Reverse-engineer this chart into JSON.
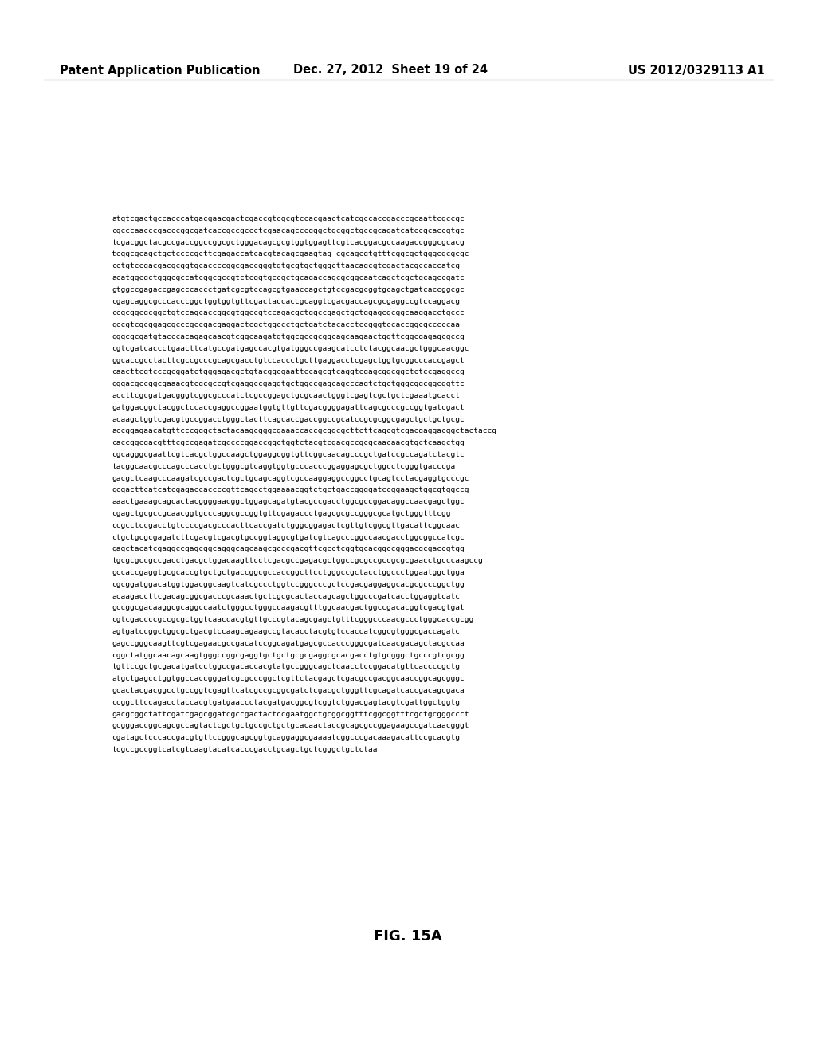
{
  "header_left": "Patent Application Publication",
  "header_mid": "Dec. 27, 2012  Sheet 19 of 24",
  "header_right": "US 2012/0329113 A1",
  "figure_label": "FIG. 15A",
  "background_color": "#ffffff",
  "text_color": "#000000",
  "header_fontsize": 10.5,
  "body_fontsize": 6.8,
  "body_text": "atgtcgactgccacccatgacgaacgactcgaccgtcgcgtccacgaactcatcgccaccgacccgcaattcgccgc\ncgcccaacccgacccggcgatcaccgccgccctcgaacagcccgggctgcggctgccgcagatcatccgcaccgtgc\ntcgacggctacgccgaccggccggcgctgggacagcgcgtggtggagttcgtcacggacgccaagaccgggcgcacg\ntcggcgcagctgctccccgcttcgagaccatcacgtacagcgaagtag cgcagcgtgtttcggcgctgggcgcgcgc\ncctgtccgacgacgcggtgcaccccggcgaccgggtgtgcgtgctgggcttaacagcgtcgactacgccaccatcg\nacatggcgctgggcgccatcggcgccgtctcggtgccgctgcagaccagcgcggcaatcagctcgctgcagccgatc\ngtggccgagaccgagcccaccctgatcgcgtccagcgtgaaccagctgtccgacgcggtgcagctgatcaccggcgc\ncgagcaggcgcccacccggctggtggtgttcgactaccaccgcaggtcgacgaccagcgcgaggccgtccaggacg\nccgcggcgcggctgtccagcaccggcgtggccgtccagacgctggccgagctgctggagcgcggcaaggacctgccc\ngccgtcgcggagcgcccgccgacgaggactcgctggccctgctgatctacacctccgggtccaccggcgcccccaa\ngggcgcgatgtacccacagagcaacgtcggcaagatgtggcgccgcggcagcaagaactggttcggcgagagcgccg\ncgtcgatcaccctgaacttcatgccgatgagccacgtgatgggccgaagcatcctctacggcaacgctgggcaacggc\nggcaccgcctacttcgccgcccgcagcgacctgtccaccctgcttgaggacctcgagctggtgcggcccaccgagct\ncaacttcgtcccgcggatctgggagacgctgtacggcgaattccagcgtcaggtcgagcggcggctctccgaggccg\ngggacgccggcgaaacgtcgcgccgtcgaggccgaggtgctggccgagcagcccagtctgctgggcggcggcggttc\naccttcgcgatgacgggtcggcgcccatctcgccggagctgcgcaactgggtcgagtcgctgctcgaaatgcacct\ngatggacggctacggctccaccgaggccggaatggtgttgttcgacggggagattcagcgcccgccggtgatcgact\nacaagctggtcgacgtgccggacctgggctacttcagcaccgaccggccgcatccgcgcggcgagctgctgctgcgc\naccggagaacatgttcccgggctactacaagcgggcgaaaccaccgcggcgcttcttcagcgtcgacgaggacggctactaccg\ncaccggcgacgtttcgccgagatcgccccggaccggctggtctacgtcgacgccgcgcaacaacgtgctcaagctgg\ncgcagggcgaattcgtcacgctggccaagctggaggcggtgttcggcaacagcccgctgatccgccagatctacgtc\ntacggcaacgcccagcccacctgctgggcgtcaggtggtgcccacccggaggagcgctggcctcgggtgacccga\ngacgctcaagcccaagatcgccgactcgctgcagcaggtcgccaaggaggccggcctgcagtcctacgaggtgcccgc\ngcgacttcatcatcgagaccaccccgttcagcctggaaaacggtctgctgaccggggatccggaagctggcgtggccg\naaactgaaagcagcactacggggaacggctggagcagatgtacgccgacctggcgccggacaggccaacgagctggc\ncgagctgcgccgcaacggtgcccaggcgccggtgttcgagaccctgagcgcgccgggcgcatgctgggtttcgg\nccgcctccgacctgtccccgacgcccacttcaccgatctgggcggagactcgttgtcggcgttgacattcggcaac\nctgctgcgcgagatcttcgacgtcgacgtgccggtaggcgtgatcgtcagcccggccaacgacctggcggccatcgc\ngagctacatcgaggccgagcggcagggcagcaagcgcccgacgttcgcctcggtgcacggccgggacgcgaccgtgg\ntgcgcgccgccgacctgacgctggacaagttcctcgacgccgagacgctggccgcgccgccgcgcgaacctgcccaagccg\ngccaccgaggtgcgcaccgtgctgctgaccggcgccaccggcttcctgggccgctacctggccctggaatggctgga\ncgcggatggacatggtggacggcaagtcatcgccctggtccgggcccgctccgacgaggaggcacgcgcccggctgg\nacaagaccttcgacagcggcgacccgcaaactgctcgcgcactaccagcagctggcccgatcacctggaggtcatc\ngccggcgacaaggcgcaggccaatctgggcctgggccaagacgtttggcaacgactggccgacacggtcgacgtgat\ncgtcgaccccgccgcgctggtcaaccacgtgttgcccgtacagcgagctgtttcgggcccaacgccctgggcaccgcgg\nagtgatccggctggcgctgacgtccaagcagaagccgtacacctacgtgtccaccatcggcgtgggcgaccagatc\ngagccgggcaagttcgtcgagaacgccgacatccggcagatgagcgccacccgggcgatcaacgacagctacgccaa\ncggctatggcaacagcaagtgggccggcgaggtgctgctgcgcgaggcgcacgacctgtgcgggctgcccgtcgcgg\ntgttccgctgcgacatgatcctggccgacaccacgtatgccgggcagctcaacctccggacatgttcaccccgctg\natgctgagcctggtggccaccgggatcgcgcccggctcgttctacgagctcgacgccgacggcaaccggcagcgggc\ngcactacgacggcctgccggtcgagttcatcgccgcggcgatctcgacgctgggttcgcagatcaccgacagcgaca\nccggcttccagacctaccacgtgatgaaccctacgatgacggcgtcggtctggacgagtacgtcgattggctggtg\ngacgcggctattcgatcgagcggatcgccgactactccgaatggctgcggcggtttcggcggtttcgctgcgggccct\ngcgggaccggcagcgccagtactcgctgctgccgctgctgcacaactaccgcagcgccggagaagccgatcaacgggt\ncgatagctcccaccgacgtgttccgggcagcggtgcaggaggcgaaaatcggcccgacaaagacattccgcacgtg\ntcgccgccggtcatcgtcaagtacatcacccgacctgcagctgctcgggctgctctaa"
}
